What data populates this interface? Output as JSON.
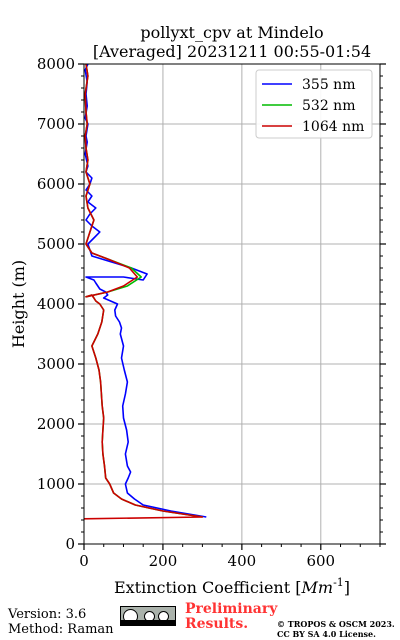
{
  "chart_data": {
    "type": "line",
    "title": [
      "pollyxt_cpv at Mindelo",
      "[Averaged] 20231211 00:55-01:54"
    ],
    "xlabel": "Extinction Coefficient",
    "xlabel_unit": "Mm",
    "xlabel_unit_exp": "-1",
    "ylabel": "Height (m)",
    "xlim": [
      0,
      750
    ],
    "ylim": [
      0,
      8000
    ],
    "xticks": [
      0,
      200,
      400,
      600
    ],
    "yticks": [
      0,
      1000,
      2000,
      3000,
      4000,
      5000,
      6000,
      7000,
      8000
    ],
    "grid": true,
    "legend_position": "top-right",
    "series": [
      {
        "name": "355 nm",
        "color": "#0000ff",
        "x": [
          310,
          220,
          150,
          128,
          110,
          105,
          112,
          118,
          110,
          105,
          112,
          108,
          100,
          98,
          105,
          110,
          102,
          95,
          100,
          92,
          95,
          90,
          80,
          78,
          85,
          50,
          60,
          55,
          40,
          35,
          30,
          25,
          5,
          100,
          150,
          160,
          120,
          70,
          20,
          10,
          25,
          40,
          20,
          5,
          15,
          30,
          10,
          20,
          5,
          15,
          20,
          5,
          10,
          3,
          8,
          5,
          10,
          3,
          8,
          5,
          8,
          3,
          10
        ],
        "y": [
          450,
          550,
          650,
          750,
          850,
          1000,
          1100,
          1200,
          1300,
          1500,
          1700,
          1900,
          2100,
          2300,
          2500,
          2700,
          2900,
          3100,
          3300,
          3500,
          3600,
          3700,
          3800,
          3900,
          4000,
          4100,
          4150,
          4200,
          4250,
          4300,
          4350,
          4400,
          4450,
          4450,
          4400,
          4500,
          4600,
          4700,
          4800,
          5000,
          5100,
          5200,
          5300,
          5400,
          5500,
          5600,
          5700,
          5800,
          5900,
          6000,
          6100,
          6200,
          6300,
          6500,
          6700,
          6800,
          7000,
          7100,
          7300,
          7500,
          7700,
          7900,
          8000
        ]
      },
      {
        "name": "532 nm",
        "color": "#00bb00",
        "x": [
          300,
          200,
          130,
          95,
          75,
          65,
          55,
          52,
          48,
          46,
          48,
          50,
          46,
          44,
          42,
          38,
          30,
          20,
          35,
          45,
          50,
          40,
          30,
          25,
          20,
          5,
          60,
          110,
          145,
          120,
          60,
          20,
          5,
          15,
          25,
          10,
          5,
          15,
          5,
          10,
          5,
          3,
          8,
          5,
          3,
          10,
          5
        ],
        "y": [
          450,
          550,
          650,
          750,
          850,
          1000,
          1100,
          1300,
          1500,
          1700,
          1900,
          2100,
          2300,
          2500,
          2700,
          2900,
          3100,
          3300,
          3500,
          3700,
          3900,
          4000,
          4050,
          4100,
          4150,
          4120,
          4200,
          4300,
          4450,
          4600,
          4750,
          4850,
          5000,
          5200,
          5400,
          5600,
          5800,
          6000,
          6200,
          6400,
          6600,
          6800,
          7000,
          7200,
          7500,
          7800,
          8000
        ]
      },
      {
        "name": "1064 nm",
        "color": "#cc0000",
        "x": [
          0,
          300,
          200,
          130,
          95,
          75,
          65,
          55,
          52,
          48,
          46,
          48,
          50,
          46,
          44,
          42,
          38,
          30,
          20,
          35,
          45,
          50,
          40,
          30,
          25,
          20,
          5,
          60,
          100,
          135,
          115,
          60,
          20,
          5,
          15,
          25,
          10,
          5,
          15,
          5,
          10,
          5,
          3,
          8,
          5,
          3,
          10,
          5
        ],
        "y": [
          420,
          450,
          550,
          650,
          750,
          850,
          1000,
          1100,
          1300,
          1500,
          1700,
          1900,
          2100,
          2300,
          2500,
          2700,
          2900,
          3100,
          3300,
          3500,
          3700,
          3900,
          4000,
          4050,
          4100,
          4150,
          4120,
          4200,
          4300,
          4450,
          4600,
          4750,
          4850,
          5000,
          5200,
          5400,
          5600,
          5800,
          6000,
          6200,
          6400,
          6600,
          6800,
          7000,
          7200,
          7500,
          7800,
          8000
        ]
      }
    ]
  },
  "footer": {
    "version": "Version: 3.6",
    "method": "Method: Raman",
    "preliminary_1": "Preliminary",
    "preliminary_2": "Results.",
    "copyright_1": "© TROPOS & OSCM 2023.",
    "copyright_2": "CC BY SA 4.0 License."
  }
}
